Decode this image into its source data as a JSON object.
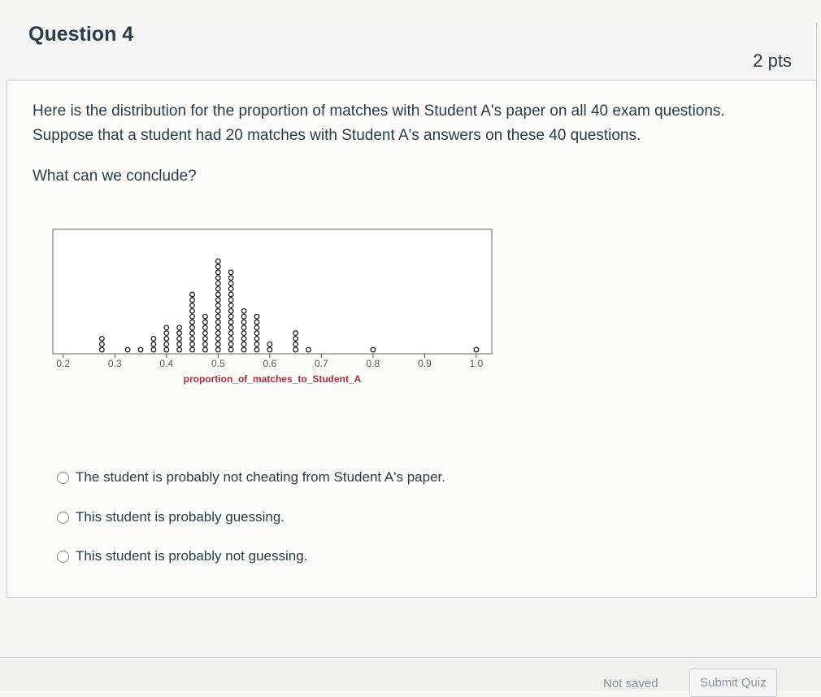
{
  "header": {
    "title": "Question 4",
    "points": "2 pts"
  },
  "question": {
    "text": "Here is the distribution for the proportion of matches with Student A's paper on all 40 exam questions. Suppose that a student had 20 matches with Student A's answers on these 40 questions.",
    "prompt": "What can we conclude?"
  },
  "chart_data": {
    "type": "dotplot",
    "x_label": "proportion_of_matches_to_Student_A",
    "x": [
      0.275,
      0.325,
      0.35,
      0.375,
      0.4,
      0.425,
      0.45,
      0.475,
      0.5,
      0.525,
      0.55,
      0.575,
      0.6,
      0.65,
      0.675,
      0.8,
      1
    ],
    "values": [
      3,
      1,
      1,
      3,
      5,
      5,
      11,
      7,
      17,
      15,
      8,
      7,
      2,
      4,
      1,
      1,
      1
    ],
    "color": "#222222",
    "xlim": [
      0.18,
      1.03
    ],
    "xticks": [
      0.2,
      0.3,
      0.4,
      0.5,
      0.6,
      0.7,
      0.8,
      0.9,
      {
        "value": 1,
        "label": "1.0"
      }
    ]
  },
  "answers": [
    "The student is probably not cheating from Student A's paper.",
    "This student is probably guessing.",
    "This student is probably not guessing."
  ],
  "footer": {
    "status": "Not saved",
    "submit": "Submit Quiz"
  }
}
